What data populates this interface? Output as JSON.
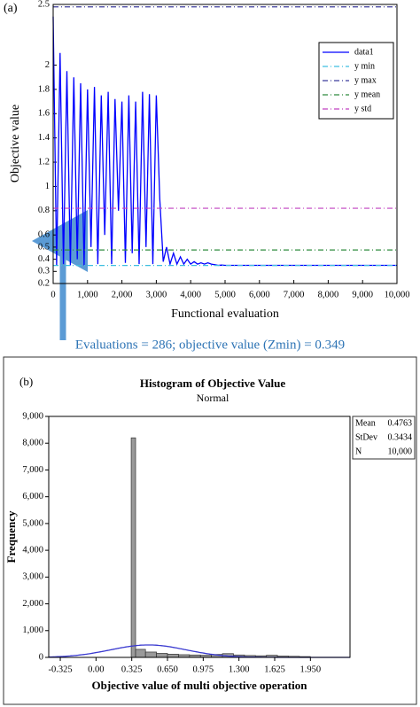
{
  "chart_data": [
    {
      "type": "line",
      "panel_label": "(a)",
      "xlabel": "Functional evaluation",
      "ylabel": "Objective value",
      "annotation": "Evaluations = 286; objective value (Zmin) = 0.349",
      "xlim": [
        0,
        10000
      ],
      "xticks": [
        0,
        {
          "value": 1000,
          "label": "1,000"
        },
        {
          "value": 2000,
          "label": "2,000"
        },
        {
          "value": 3000,
          "label": "3,000"
        },
        {
          "value": 4000,
          "label": "4,000"
        },
        {
          "value": 5000,
          "label": "5,000"
        },
        {
          "value": 6000,
          "label": "6,000"
        },
        {
          "value": 7000,
          "label": "7,000"
        },
        {
          "value": 8000,
          "label": "8,000"
        },
        {
          "value": 9000,
          "label": "9,000"
        },
        {
          "value": 10000,
          "label": "10,000"
        }
      ],
      "ylim": [
        0.2,
        2.5
      ],
      "yticks": [
        0.2,
        0.3,
        0.4,
        0.5,
        0.6,
        0.8,
        1,
        1.2,
        1.4,
        1.6,
        1.8,
        2,
        2.5
      ],
      "x": [
        0,
        100,
        200,
        300,
        400,
        500,
        600,
        700,
        800,
        900,
        1000,
        1100,
        1200,
        1300,
        1400,
        1500,
        1600,
        1700,
        1800,
        1900,
        2000,
        2100,
        2200,
        2300,
        2400,
        2500,
        2600,
        2700,
        2800,
        2900,
        3000,
        3100,
        3200,
        3300,
        3400,
        3500,
        3600,
        3700,
        3800,
        3900,
        4000,
        4100,
        4200,
        4300,
        4400,
        4500,
        4600,
        4700,
        4800,
        4900,
        5000,
        6000,
        7000,
        8000,
        9000,
        10000
      ],
      "series": [
        {
          "name": "data1",
          "color": "#0000ff",
          "values": [
            2.4,
            0.35,
            2.1,
            0.36,
            1.95,
            0.35,
            1.9,
            0.4,
            1.85,
            0.35,
            1.8,
            0.5,
            1.82,
            0.36,
            1.75,
            0.6,
            1.78,
            0.36,
            1.72,
            0.8,
            1.7,
            0.37,
            1.75,
            0.45,
            1.7,
            0.36,
            1.78,
            0.5,
            1.76,
            0.36,
            1.75,
            0.9,
            0.38,
            0.5,
            0.36,
            0.45,
            0.36,
            0.42,
            0.36,
            0.4,
            0.36,
            0.38,
            0.36,
            0.37,
            0.36,
            0.37,
            0.36,
            0.355,
            0.35,
            0.352,
            0.35,
            0.35,
            0.35,
            0.35,
            0.35,
            0.35
          ]
        }
      ],
      "reference_lines": [
        {
          "name": "y min",
          "value": 0.349,
          "color": "#3fbfe0"
        },
        {
          "name": "y max",
          "value": 2.48,
          "color": "#3c3c9c"
        },
        {
          "name": "y mean",
          "value": 0.4763,
          "color": "#2e8b3e"
        },
        {
          "name": "y std",
          "value": 0.82,
          "color": "#c040c0"
        }
      ],
      "legend": "upper right"
    },
    {
      "type": "histogram",
      "panel_label": "(b)",
      "title": "Histogram of Objective Value",
      "subtitle": "Normal",
      "xlabel": "Objective value of multi objective operation",
      "ylabel": "Frequency",
      "xlim": [
        -0.43,
        2.31
      ],
      "xticks": [
        -0.325,
        {
          "value": 0,
          "label": "0.00"
        },
        0.325,
        {
          "value": 0.65,
          "label": "0.650"
        },
        0.975,
        {
          "value": 1.3,
          "label": "1.300"
        },
        1.625,
        {
          "value": 1.95,
          "label": "1.950"
        }
      ],
      "ylim": [
        0,
        9000
      ],
      "yticks": [
        0,
        {
          "value": 1000,
          "label": "1,000"
        },
        {
          "value": 2000,
          "label": "2,000"
        },
        {
          "value": 3000,
          "label": "3,000"
        },
        {
          "value": 4000,
          "label": "4,000"
        },
        {
          "value": 5000,
          "label": "5,000"
        },
        {
          "value": 6000,
          "label": "6,000"
        },
        {
          "value": 7000,
          "label": "7,000"
        },
        {
          "value": 8000,
          "label": "8,000"
        },
        {
          "value": 9000,
          "label": "9,000"
        }
      ],
      "bins": [
        0.32,
        0.36,
        0.45,
        0.55,
        0.65,
        0.75,
        0.85,
        0.95,
        1.05,
        1.15,
        1.25,
        1.35,
        1.45,
        1.55,
        1.65,
        1.75,
        1.85,
        1.95
      ],
      "counts": [
        8200,
        300,
        200,
        150,
        120,
        100,
        90,
        80,
        110,
        140,
        90,
        70,
        60,
        80,
        50,
        40,
        30
      ],
      "color": "#9a9a9a",
      "curve_color": "#3a3ad0",
      "stats": {
        "mean_label": "Mean",
        "mean": 0.4763,
        "stdev_label": "StDev",
        "stdev": 0.3434,
        "n_label": "N",
        "n": {
          "value": 10000,
          "label": "10,000"
        }
      }
    }
  ]
}
